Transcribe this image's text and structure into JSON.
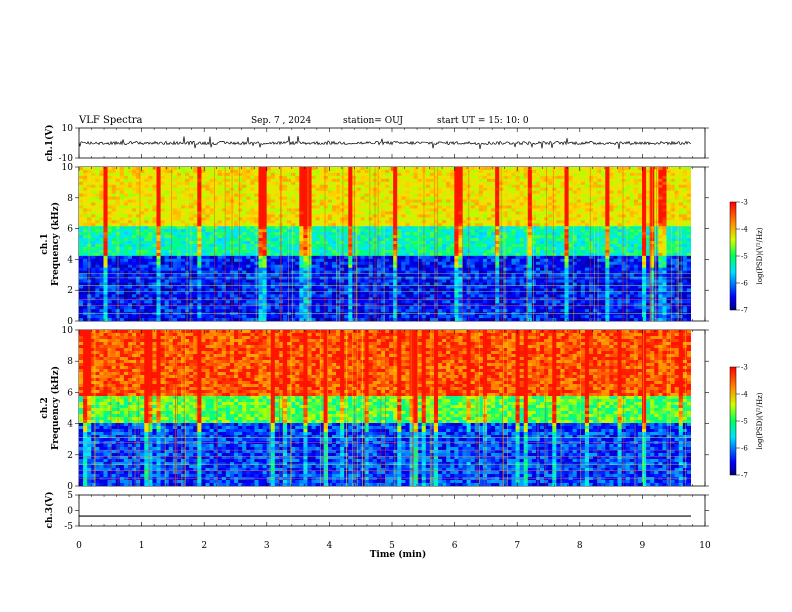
{
  "header": {
    "title": "VLF Spectra",
    "date": "Sep. 7 , 2024",
    "station": "station= OUJ",
    "start": "start  UT =   15: 10: 0"
  },
  "chart_data": [
    {
      "type": "line",
      "panel": "ch1-waveform",
      "ylabel": "ch.1(V)",
      "ylim": [
        -10,
        10
      ],
      "yticks": [
        "10",
        "-10"
      ],
      "xlim": [
        0,
        10
      ],
      "baseline_value": 0,
      "description_level": "noisy trace near 0 V"
    },
    {
      "type": "heatmap",
      "panel": "ch1-spectrogram",
      "ylabel_top": "ch.1",
      "ylabel": "Frequency (kHz)",
      "ylim": [
        0,
        10
      ],
      "yticks": [
        "0",
        "2",
        "4",
        "6",
        "8",
        "10"
      ],
      "xlim": [
        0,
        10
      ],
      "colorbar": {
        "label": "log(PSD)(V²/Hz)",
        "range": [
          -7,
          -3
        ],
        "ticks": [
          "-3",
          "-4",
          "-5",
          "-6",
          "-7"
        ]
      }
    },
    {
      "type": "heatmap",
      "panel": "ch2-spectrogram",
      "ylabel_top": "ch.2",
      "ylabel": "Frequency (kHz)",
      "ylim": [
        0,
        10
      ],
      "yticks": [
        "0",
        "2",
        "4",
        "6",
        "8",
        "10"
      ],
      "xlim": [
        0,
        10
      ],
      "colorbar": {
        "label": "log(PSD)(V²/Hz)",
        "range": [
          -7,
          -3
        ],
        "ticks": [
          "-3",
          "-4",
          "-5",
          "-6",
          "-7"
        ]
      }
    },
    {
      "type": "line",
      "panel": "ch3-waveform",
      "ylabel": "ch.3(V)",
      "ylim": [
        -5,
        5
      ],
      "yticks": [
        "5",
        "0",
        "-5"
      ],
      "xlim": [
        0,
        10
      ],
      "baseline_value": -1.8
    }
  ],
  "xaxis": {
    "label": "Time (min)",
    "ticks": [
      "0",
      "1",
      "2",
      "3",
      "4",
      "5",
      "6",
      "7",
      "8",
      "9",
      "10"
    ]
  },
  "colors": {
    "ink": "#000000",
    "colormap": [
      "#000090",
      "#0000ff",
      "#00c8ff",
      "#00ff80",
      "#c8ff00",
      "#ffc800",
      "#ff0000"
    ]
  }
}
